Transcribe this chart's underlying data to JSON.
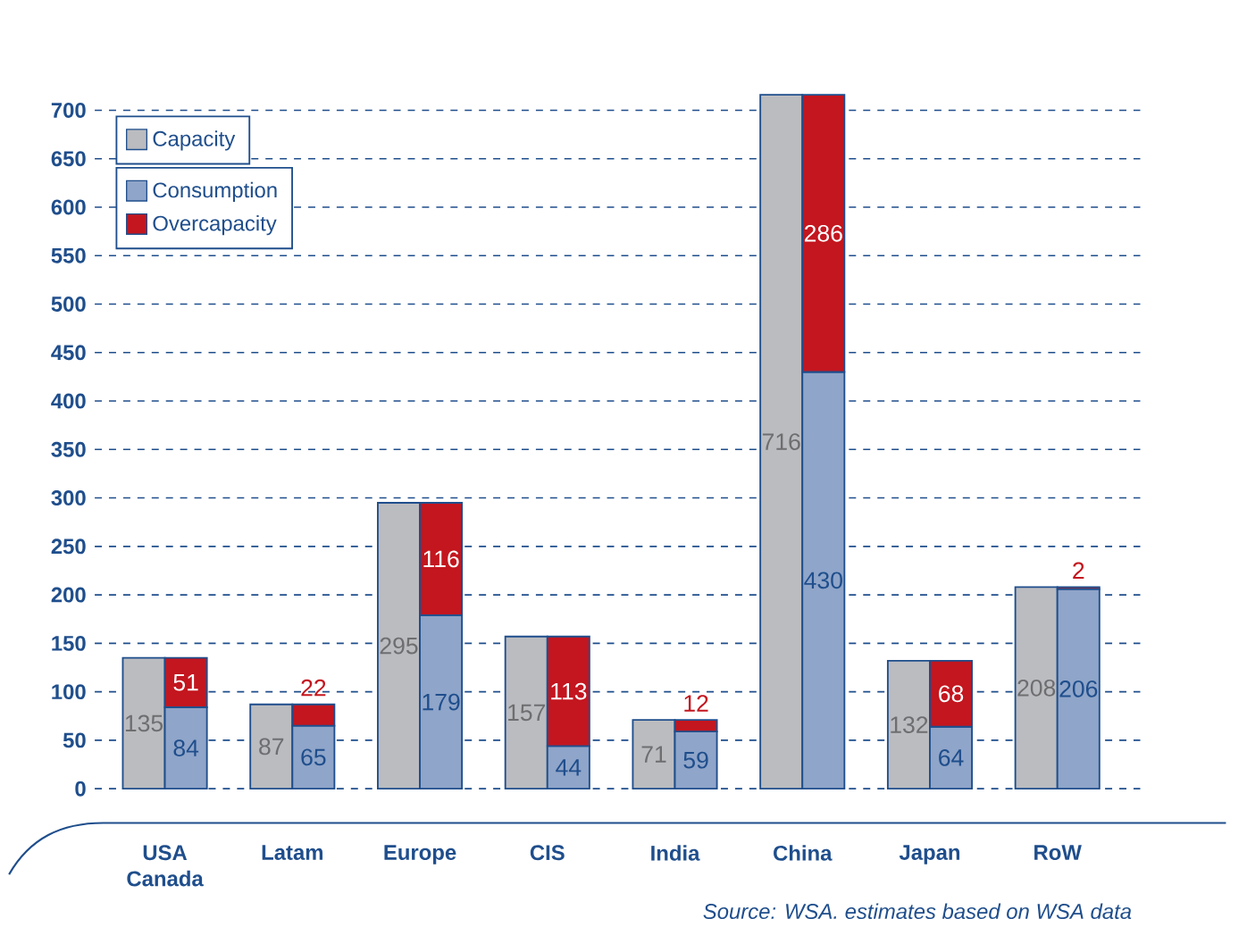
{
  "chart_data": [
    {
      "type": "bar",
      "categories": [
        "USA Canada",
        "Latam",
        "Europe",
        "CIS",
        "India",
        "China",
        "Japan",
        "RoW"
      ],
      "series": [
        {
          "name": "Capacity",
          "color": "#bbbcc0",
          "values": [
            135,
            87,
            295,
            157,
            71,
            716,
            132,
            208
          ]
        }
      ],
      "ylim": [
        0,
        716
      ],
      "yticks": [
        0,
        50,
        100,
        150,
        200,
        250,
        300,
        350,
        400,
        450,
        500,
        550,
        600,
        650,
        700
      ],
      "grid": "y",
      "legend": "top left",
      "data_labels": true,
      "annotations": [
        "Source: WSA. estimates based on WSA data"
      ]
    },
    {
      "type": "bar",
      "categories": [
        null,
        null,
        null,
        null,
        null,
        null,
        null,
        null
      ],
      "series": [
        {
          "name": "Consumption",
          "color": "#8fa5c9",
          "values": [
            84,
            65,
            179,
            44,
            59,
            430,
            64,
            206
          ]
        },
        {
          "name": "Overcapacity",
          "color": "#c3161f",
          "values": [
            51,
            22,
            116,
            113,
            12,
            286,
            68,
            2
          ]
        }
      ],
      "stacked": true,
      "ylim": [
        0,
        716
      ],
      "legend": "top left",
      "data_labels": true
    }
  ]
}
